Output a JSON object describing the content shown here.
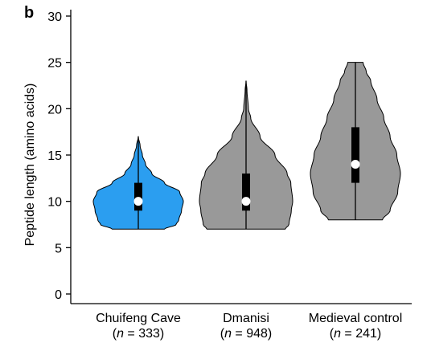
{
  "panel_label": "b",
  "chart_data": {
    "type": "violin",
    "ylabel": "Peptide length (amino acids)",
    "xlabel": "",
    "ylim": [
      0,
      30
    ],
    "yticks": [
      0,
      5,
      10,
      15,
      20,
      25,
      30
    ],
    "grid": false,
    "legend": "none",
    "groups": [
      {
        "label": "Chuifeng Cave",
        "n_prefix": "(",
        "n_symbol": "n",
        "n_value": " = 333)",
        "color": "#2b9ef0",
        "min": 7,
        "q1": 9,
        "median": 10,
        "q3": 12,
        "max": 17,
        "density": [
          [
            7,
            0.58
          ],
          [
            7.5,
            0.84
          ],
          [
            8,
            0.9
          ],
          [
            9,
            0.96
          ],
          [
            10,
            1.0
          ],
          [
            11,
            0.92
          ],
          [
            12,
            0.58
          ],
          [
            13,
            0.3
          ],
          [
            14,
            0.16
          ],
          [
            15,
            0.09
          ],
          [
            16,
            0.04
          ],
          [
            17,
            0.0
          ]
        ]
      },
      {
        "label": "Dmanisi",
        "n_prefix": "(",
        "n_symbol": "n",
        "n_value": " = 948)",
        "color": "#999999",
        "min": 7,
        "q1": 9,
        "median": 10,
        "q3": 13,
        "max": 23,
        "density": [
          [
            7,
            0.84
          ],
          [
            7.5,
            0.92
          ],
          [
            9,
            0.97
          ],
          [
            10,
            1.0
          ],
          [
            12,
            0.96
          ],
          [
            13,
            0.88
          ],
          [
            15,
            0.62
          ],
          [
            17,
            0.3
          ],
          [
            19,
            0.1
          ],
          [
            20,
            0.05
          ],
          [
            22,
            0.02
          ],
          [
            23,
            0.0
          ]
        ]
      },
      {
        "label": "Medieval control",
        "n_prefix": "(",
        "n_symbol": "n",
        "n_value": " = 241)",
        "color": "#999999",
        "min": 8,
        "q1": 12,
        "median": 14,
        "q3": 18,
        "max": 25,
        "density": [
          [
            8,
            0.6
          ],
          [
            9,
            0.77
          ],
          [
            11,
            0.94
          ],
          [
            13,
            1.0
          ],
          [
            15,
            0.92
          ],
          [
            17,
            0.77
          ],
          [
            19,
            0.63
          ],
          [
            21,
            0.48
          ],
          [
            23,
            0.34
          ],
          [
            24,
            0.24
          ],
          [
            25,
            0.17
          ]
        ]
      }
    ]
  }
}
